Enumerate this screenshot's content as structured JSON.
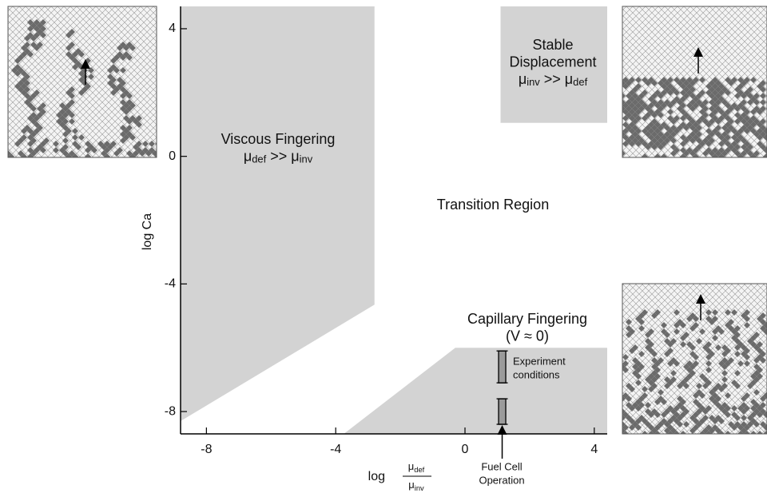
{
  "chart_data": {
    "type": "region-diagram",
    "x_label": {
      "prefix": "log",
      "numerator": [
        {
          "t": "μ"
        },
        {
          "sub": "def"
        }
      ],
      "denominator": [
        {
          "t": "μ"
        },
        {
          "sub": "inv"
        }
      ]
    },
    "y_label": "log Ca",
    "xlim": [
      -8.8,
      4.4
    ],
    "ylim": [
      -8.7,
      4.7
    ],
    "xticks": [
      -8,
      -4,
      0,
      4
    ],
    "yticks": [
      -8,
      -4,
      0,
      4
    ],
    "color": "#d3d3d3",
    "regions": [
      {
        "label": [
          [
            {
              "t": "Viscous Fingering"
            }
          ],
          [
            {
              "t": "μ"
            },
            {
              "sub": "def"
            },
            {
              "t": " >> μ"
            },
            {
              "sub": "inv"
            }
          ]
        ],
        "x": [
          -8.8,
          -2.8,
          -2.8,
          -8.8
        ],
        "y": [
          4.7,
          4.7,
          -4.65,
          -8.3
        ]
      },
      {
        "label": [
          [
            {
              "t": "Stable"
            }
          ],
          [
            {
              "t": "Displacement"
            }
          ],
          [
            {
              "t": "μ"
            },
            {
              "sub": "inv"
            },
            {
              "t": " >> μ"
            },
            {
              "sub": "def"
            }
          ]
        ],
        "x": [
          1.1,
          4.4,
          4.4,
          1.1
        ],
        "y": [
          4.7,
          4.7,
          1.05,
          1.05
        ]
      },
      {
        "label": [
          [
            {
              "t": "Capillary Fingering"
            }
          ],
          [
            {
              "t": "(V ≈ 0)"
            }
          ]
        ],
        "x": [
          -3.75,
          -0.3,
          4.4,
          4.4
        ],
        "y": [
          -8.7,
          -6.0,
          -6.0,
          -8.7
        ]
      }
    ],
    "transition_label": "Transition Region",
    "experiment_label": [
      "Experiment",
      "conditions"
    ],
    "experiment_x": 1.15,
    "experiment_ranges": [
      [
        -6.1,
        -7.1
      ],
      [
        -7.6,
        -8.4
      ]
    ],
    "operation_label": [
      "Fuel Cell",
      "Operation"
    ]
  }
}
